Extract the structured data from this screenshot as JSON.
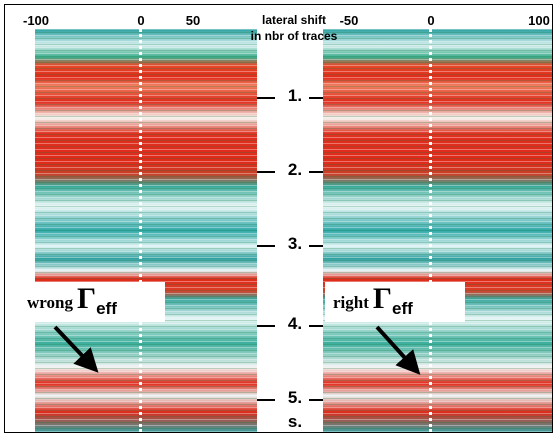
{
  "header": {
    "lines": [
      "lateral shift",
      "in nbr of traces"
    ]
  },
  "left_panel": {
    "ticks": [
      "-100",
      "0",
      "50"
    ],
    "annotation": {
      "word": "wrong",
      "symbol": "Γ",
      "subscript": "eff"
    }
  },
  "right_panel": {
    "ticks": [
      "-50",
      "0",
      "100"
    ],
    "annotation": {
      "word": "right",
      "symbol": "Γ",
      "subscript": "eff"
    }
  },
  "time_axis": {
    "ticks": [
      "1.",
      "2.",
      "3.",
      "4.",
      "5."
    ],
    "unit": "s."
  }
}
